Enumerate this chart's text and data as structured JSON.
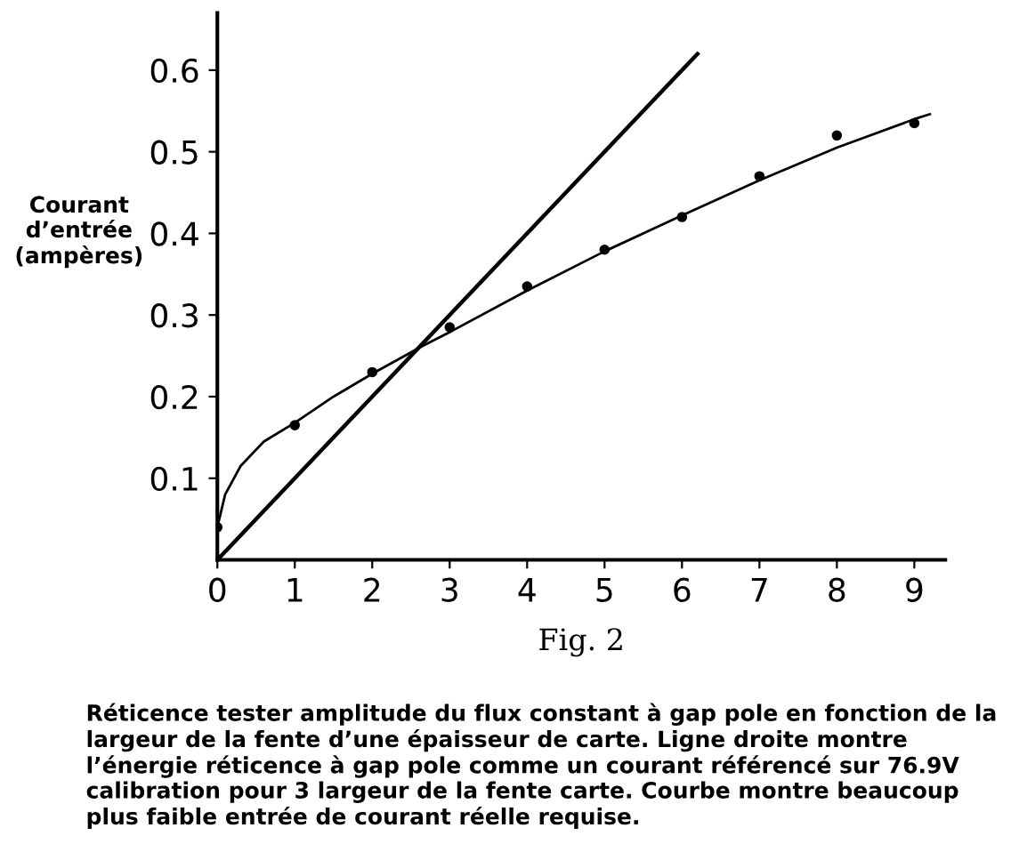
{
  "chart_data": {
    "type": "scatter",
    "xlabel": "Fig. 2",
    "ylabel": "Courant\nd’entrée\n(ampères)",
    "annotations": [
      "Réticence tester amplitude du flux constant à gap pole en fonction de la largeur de la fente d’une épaisseur de carte. Ligne droite montre l’énergie réticence à gap pole comme un courant référencé sur 76.9V calibration pour 3 largeur de la fente carte. Courbe montre beaucoup plus faible entrée de courant réelle requise."
    ],
    "series": [
      {
        "color": "#000000",
        "marker": "circle",
        "x": [
          0,
          1,
          2,
          3,
          4,
          5,
          6,
          7,
          8,
          9
        ],
        "values": [
          0.04,
          0.165,
          0.23,
          0.285,
          0.335,
          0.38,
          0.42,
          0.47,
          0.52,
          0.535
        ]
      },
      {
        "type": "line",
        "color": "#000000",
        "x": [
          0,
          6.2
        ],
        "values": [
          0,
          0.62
        ]
      },
      {
        "type": "line",
        "color": "#000000",
        "x": [
          0,
          0.1,
          0.3,
          0.6,
          1,
          1.5,
          2,
          2.65,
          3,
          4,
          5,
          6,
          7,
          8,
          9,
          9.2
        ],
        "values": [
          0.04,
          0.08,
          0.115,
          0.145,
          0.168,
          0.2,
          0.228,
          0.262,
          0.279,
          0.33,
          0.378,
          0.422,
          0.465,
          0.505,
          0.54,
          0.546
        ]
      }
    ],
    "xlim": [
      0,
      9.4
    ],
    "ylim": [
      0,
      0.67
    ],
    "xticks": [
      0,
      1,
      2,
      3,
      4,
      5,
      6,
      7,
      8,
      9
    ],
    "yticks": [
      0.1,
      0.2,
      0.3,
      0.4,
      0.5,
      0.6
    ],
    "grid": false,
    "legend": false
  }
}
